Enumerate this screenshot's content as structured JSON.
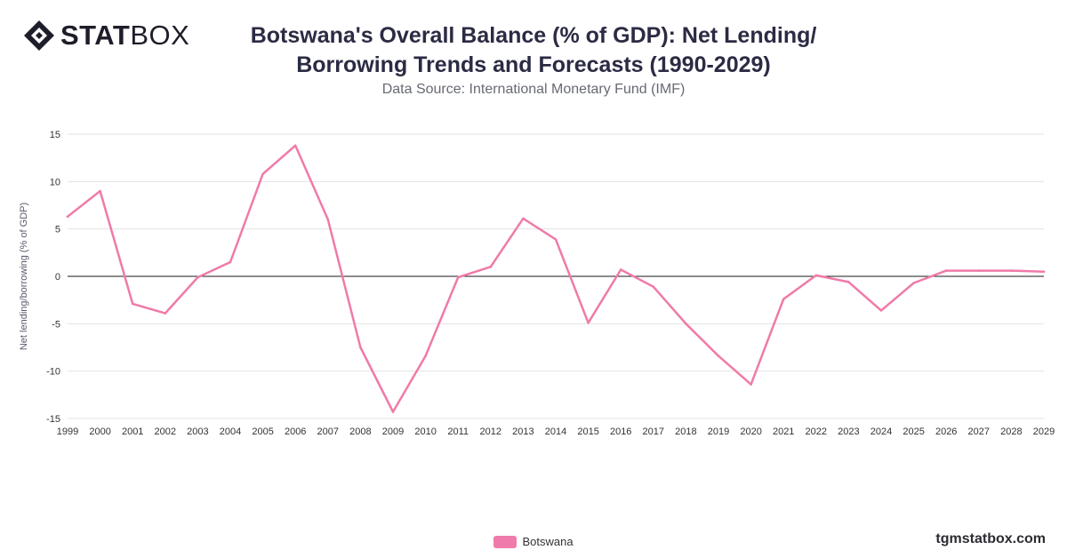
{
  "header": {
    "logo_alt": "STATBOX",
    "logo_bold": "STAT",
    "logo_light": "BOX",
    "title_line1": "Botswana's Overall Balance (% of GDP): Net Lending/",
    "title_line2": "Borrowing Trends and Forecasts (1990-2029)",
    "subtitle": "Data Source: International Monetary Fund (IMF)"
  },
  "footer": {
    "site": "tgmstatbox.com"
  },
  "colors": {
    "line": "#f07aa9",
    "grid": "#e3e3e3",
    "zero_line": "#1a1a1a",
    "axis_text": "#333333"
  },
  "chart_data": {
    "type": "line",
    "title": "Botswana's Overall Balance (% of GDP): Net Lending/Borrowing Trends and Forecasts (1990-2029)",
    "ylabel": "Net lending/borrowing (% of GDP)",
    "xlabel": "",
    "ylim": [
      -15,
      15
    ],
    "yticks": [
      15,
      10,
      5,
      0,
      -5,
      -10,
      -15
    ],
    "grid": true,
    "legend_position": "bottom-center",
    "x": [
      "1999",
      "2000",
      "2001",
      "2002",
      "2003",
      "2004",
      "2005",
      "2006",
      "2007",
      "2008",
      "2009",
      "2010",
      "2011",
      "2012",
      "2013",
      "2014",
      "2015",
      "2016",
      "2017",
      "2018",
      "2019",
      "2020",
      "2021",
      "2022",
      "2023",
      "2024",
      "2025",
      "2026",
      "2027",
      "2028",
      "2029"
    ],
    "series": [
      {
        "name": "Botswana",
        "values": [
          6.3,
          9.0,
          -2.9,
          -3.9,
          -0.1,
          1.5,
          10.8,
          13.8,
          6.0,
          -7.5,
          -14.3,
          -8.4,
          -0.1,
          1.0,
          6.1,
          3.9,
          -4.9,
          0.7,
          -1.1,
          -5.0,
          -8.4,
          -11.4,
          -2.4,
          0.1,
          -0.6,
          -3.6,
          -0.7,
          0.6,
          0.6,
          0.6,
          0.5
        ]
      }
    ]
  }
}
